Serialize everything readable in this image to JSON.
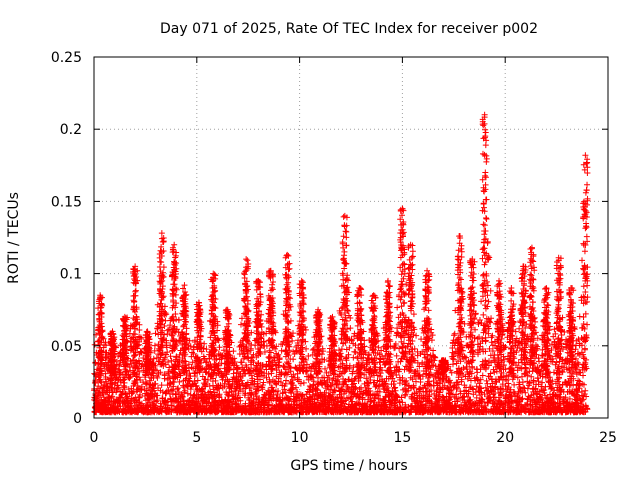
{
  "chart_data": {
    "type": "scatter",
    "title": "Day 071 of 2025, Rate Of TEC Index for receiver p002",
    "xlabel": "GPS time / hours",
    "ylabel": "ROTI / TECUs",
    "xlim": [
      0,
      25
    ],
    "ylim": [
      0,
      0.25
    ],
    "xticks": [
      0,
      5,
      10,
      15,
      20,
      25
    ],
    "yticks": [
      0,
      0.05,
      0.1,
      0.15,
      0.2,
      0.25
    ],
    "x_tick_labels": [
      "0",
      "5",
      "10",
      "15",
      "20",
      "25"
    ],
    "y_tick_labels": [
      "0",
      "0.05",
      "0.1",
      "0.15",
      "0.2",
      "0.25"
    ],
    "grid": true,
    "marker": "+",
    "marker_color": "#ff0000",
    "x_data_range": [
      0,
      24
    ],
    "series": [
      {
        "name": "ROTI",
        "bursts": [
          {
            "x": 0.3,
            "peak": 0.085
          },
          {
            "x": 0.9,
            "peak": 0.06
          },
          {
            "x": 1.5,
            "peak": 0.07
          },
          {
            "x": 2.0,
            "peak": 0.105
          },
          {
            "x": 2.6,
            "peak": 0.06
          },
          {
            "x": 3.3,
            "peak": 0.128
          },
          {
            "x": 3.9,
            "peak": 0.12
          },
          {
            "x": 4.4,
            "peak": 0.092
          },
          {
            "x": 5.1,
            "peak": 0.08
          },
          {
            "x": 5.8,
            "peak": 0.1
          },
          {
            "x": 6.5,
            "peak": 0.075
          },
          {
            "x": 7.4,
            "peak": 0.11
          },
          {
            "x": 8.0,
            "peak": 0.095
          },
          {
            "x": 8.6,
            "peak": 0.102
          },
          {
            "x": 9.4,
            "peak": 0.113
          },
          {
            "x": 10.1,
            "peak": 0.095
          },
          {
            "x": 10.9,
            "peak": 0.075
          },
          {
            "x": 11.6,
            "peak": 0.07
          },
          {
            "x": 12.2,
            "peak": 0.14
          },
          {
            "x": 12.9,
            "peak": 0.09
          },
          {
            "x": 13.6,
            "peak": 0.085
          },
          {
            "x": 14.3,
            "peak": 0.095
          },
          {
            "x": 15.0,
            "peak": 0.145
          },
          {
            "x": 15.4,
            "peak": 0.12
          },
          {
            "x": 16.2,
            "peak": 0.102
          },
          {
            "x": 17.0,
            "peak": 0.04
          },
          {
            "x": 17.8,
            "peak": 0.126
          },
          {
            "x": 18.4,
            "peak": 0.11
          },
          {
            "x": 19.0,
            "peak": 0.21
          },
          {
            "x": 19.7,
            "peak": 0.095
          },
          {
            "x": 20.3,
            "peak": 0.09
          },
          {
            "x": 20.9,
            "peak": 0.105
          },
          {
            "x": 21.3,
            "peak": 0.118
          },
          {
            "x": 22.0,
            "peak": 0.09
          },
          {
            "x": 22.6,
            "peak": 0.111
          },
          {
            "x": 23.2,
            "peak": 0.09
          },
          {
            "x": 23.9,
            "peak": 0.182
          }
        ]
      }
    ]
  }
}
